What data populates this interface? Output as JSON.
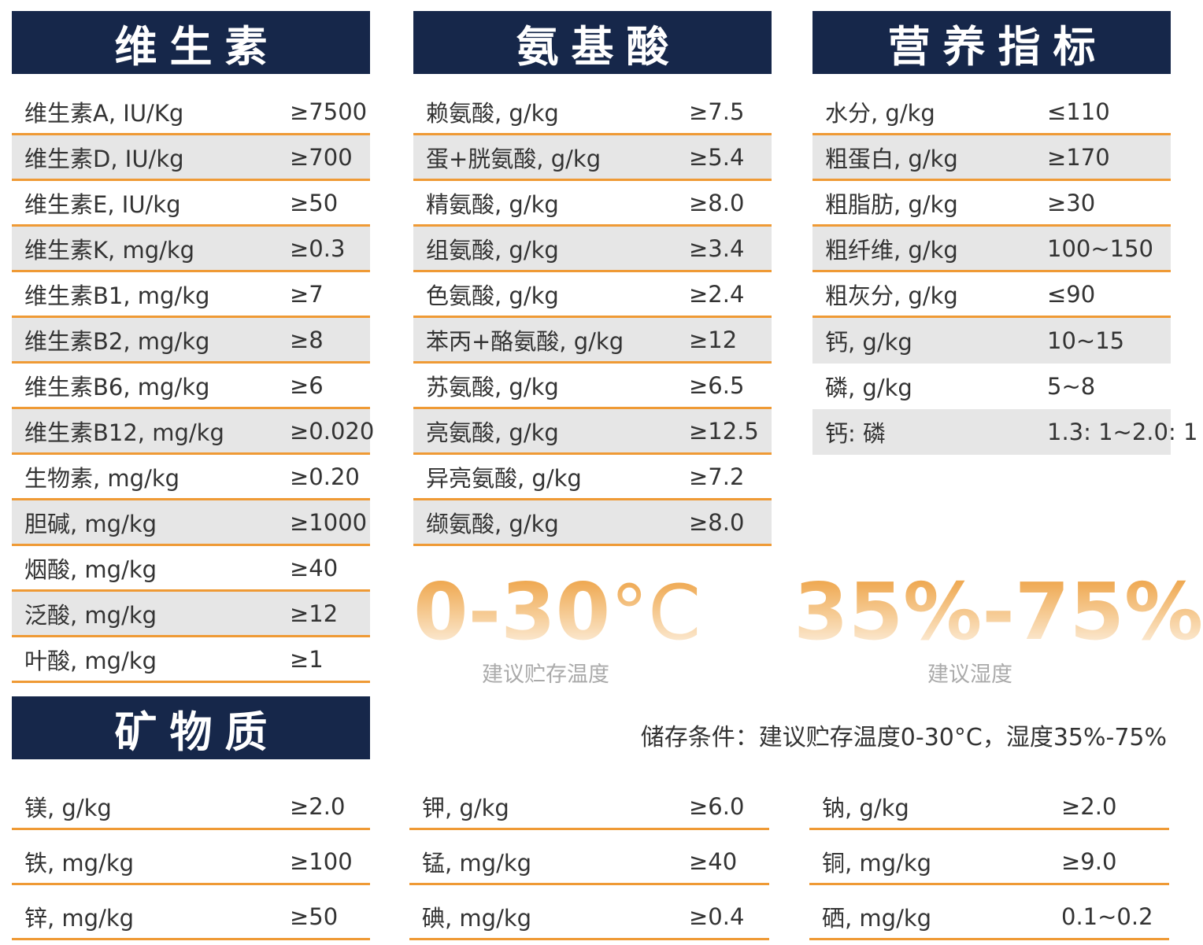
{
  "vitamins": {
    "title": "维生素",
    "rows": [
      {
        "name": "维生素A, IU/Kg",
        "value": "≥7500"
      },
      {
        "name": "维生素D, IU/kg",
        "value": "≥700"
      },
      {
        "name": "维生素E, IU/kg",
        "value": "≥50"
      },
      {
        "name": "维生素K, mg/kg",
        "value": "≥0.3"
      },
      {
        "name": "维生素B1, mg/kg",
        "value": "≥7"
      },
      {
        "name": "维生素B2, mg/kg",
        "value": "≥8"
      },
      {
        "name": "维生素B6, mg/kg",
        "value": "≥6"
      },
      {
        "name": "维生素B12, mg/kg",
        "value": "≥0.020"
      },
      {
        "name": "生物素, mg/kg",
        "value": "≥0.20"
      },
      {
        "name": "胆碱, mg/kg",
        "value": "≥1000"
      },
      {
        "name": "烟酸, mg/kg",
        "value": "≥40"
      },
      {
        "name": "泛酸, mg/kg",
        "value": "≥12"
      },
      {
        "name": "叶酸, mg/kg",
        "value": "≥1"
      }
    ]
  },
  "amino_acids": {
    "title": "氨基酸",
    "rows": [
      {
        "name": "赖氨酸, g/kg",
        "value": "≥7.5"
      },
      {
        "name": "蛋+胱氨酸, g/kg",
        "value": "≥5.4"
      },
      {
        "name": "精氨酸, g/kg",
        "value": "≥8.0"
      },
      {
        "name": "组氨酸, g/kg",
        "value": "≥3.4"
      },
      {
        "name": "色氨酸, g/kg",
        "value": "≥2.4"
      },
      {
        "name": "苯丙+酪氨酸, g/kg",
        "value": "≥12"
      },
      {
        "name": "苏氨酸, g/kg",
        "value": "≥6.5"
      },
      {
        "name": "亮氨酸, g/kg",
        "value": "≥12.5"
      },
      {
        "name": "异亮氨酸, g/kg",
        "value": "≥7.2"
      },
      {
        "name": "缬氨酸, g/kg",
        "value": "≥8.0"
      }
    ]
  },
  "nutrition": {
    "title": "营养指标",
    "rows": [
      {
        "name": "水分, g/kg",
        "value": "≤110"
      },
      {
        "name": "粗蛋白, g/kg",
        "value": "≥170"
      },
      {
        "name": "粗脂肪, g/kg",
        "value": "≥30"
      },
      {
        "name": "粗纤维, g/kg",
        "value": "100~150"
      },
      {
        "name": "粗灰分, g/kg",
        "value": "≤90"
      },
      {
        "name": "钙, g/kg",
        "value": "10~15"
      },
      {
        "name": "磷, g/kg",
        "value": "5~8"
      },
      {
        "name": "钙: 磷",
        "value": "1.3: 1~2.0: 1"
      }
    ]
  },
  "minerals": {
    "title": "矿物质",
    "col1": [
      {
        "name": "镁, g/kg",
        "value": "≥2.0"
      },
      {
        "name": "铁, mg/kg",
        "value": "≥100"
      },
      {
        "name": "锌, mg/kg",
        "value": "≥50"
      }
    ],
    "col2": [
      {
        "name": "钾, g/kg",
        "value": "≥6.0"
      },
      {
        "name": "锰, mg/kg",
        "value": "≥40"
      },
      {
        "name": "碘, mg/kg",
        "value": "≥0.4"
      }
    ],
    "col3": [
      {
        "name": "钠, g/kg",
        "value": "≥2.0"
      },
      {
        "name": "铜, mg/kg",
        "value": "≥9.0"
      },
      {
        "name": "硒, mg/kg",
        "value": "0.1~0.2"
      }
    ]
  },
  "storage": {
    "temp_range": "0-30",
    "temp_unit": "°C",
    "temp_caption": "建议贮存温度",
    "humidity_range": "35%-75%",
    "humidity_caption": "建议湿度",
    "conditions_text": "储存条件：建议贮存温度0-30°C，湿度35%-75%"
  },
  "colors": {
    "header_bg": "#16274a",
    "accent_orange": "#ef9a35",
    "alt_row_bg": "#e6e6e6"
  }
}
